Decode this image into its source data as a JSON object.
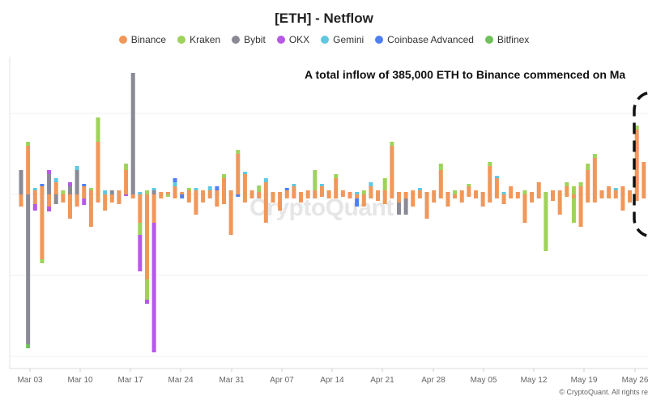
{
  "chart_data": {
    "type": "bar",
    "stacked": true,
    "title": "[ETH] - Netflow",
    "legend_position": "top",
    "grid": true,
    "x_ticks": [
      "Mar 03",
      "Mar 10",
      "Mar 17",
      "Mar 24",
      "Mar 31",
      "Apr 07",
      "Apr 14",
      "Apr 21",
      "Apr 28",
      "May 05",
      "May 12",
      "May 19",
      "May 26"
    ],
    "series_colors": {
      "Binance": "#f0975a",
      "Kraken": "#9ed35a",
      "Bybit": "#8a8a96",
      "OKX": "#b658e8",
      "Gemini": "#5ec8e0",
      "Coinbase Advanced": "#4f7ff0",
      "Bitfinex": "#6fc15a"
    },
    "series": [
      {
        "name": "Binance"
      },
      {
        "name": "Kraken"
      },
      {
        "name": "Bybit"
      },
      {
        "name": "OKX"
      },
      {
        "name": "Gemini"
      },
      {
        "name": "Coinbase Advanced"
      },
      {
        "name": "Bitfinex"
      }
    ],
    "bars": [
      {
        "date": "Mar 01",
        "pos": {
          "Bybit": 30
        },
        "neg": {
          "Binance": 15
        }
      },
      {
        "date": "Mar 02",
        "pos": {
          "Binance": 60,
          "Kraken": 5
        },
        "neg": {
          "Bybit": 185,
          "Bitfinex": 5
        }
      },
      {
        "date": "Mar 03",
        "pos": {
          "Binance": 5,
          "Gemini": 3
        },
        "neg": {
          "Binance": 12,
          "OKX": 8
        }
      },
      {
        "date": "Mar 04",
        "pos": {
          "Binance": 10,
          "Coinbase Advanced": 3
        },
        "neg": {
          "Binance": 80,
          "Kraken": 5
        }
      },
      {
        "date": "Mar 05",
        "pos": {
          "Bybit": 25,
          "OKX": 5
        },
        "neg": {
          "Binance": 15,
          "OKX": 6
        }
      },
      {
        "date": "Mar 06",
        "pos": {
          "Binance": 15,
          "Gemini": 5
        },
        "neg": {
          "Bybit": 12
        }
      },
      {
        "date": "Mar 07",
        "pos": {
          "Kraken": 5
        },
        "neg": {
          "Binance": 10
        }
      },
      {
        "date": "Mar 08",
        "pos": {
          "Bybit": 10,
          "OKX": 5
        },
        "neg": {
          "Binance": 30
        }
      },
      {
        "date": "Mar 09",
        "pos": {
          "Bybit": 30,
          "Gemini": 5
        },
        "neg": {
          "Binance": 15
        }
      },
      {
        "date": "Mar 10",
        "pos": {
          "Binance": 10,
          "Coinbase Advanced": 3
        },
        "neg": {
          "OKX": 8,
          "Binance": 5
        }
      },
      {
        "date": "Mar 11",
        "pos": {
          "Binance": 5,
          "Kraken": 3
        },
        "neg": {
          "Binance": 40
        }
      },
      {
        "date": "Mar 12",
        "pos": {
          "Binance": 65,
          "Kraken": 30
        },
        "neg": {
          "Binance": 10
        }
      },
      {
        "date": "Mar 13",
        "pos": {
          "Gemini": 5
        },
        "neg": {
          "Binance": 20
        }
      },
      {
        "date": "Mar 14",
        "pos": {
          "Bybit": 5
        },
        "neg": {
          "Binance": 10
        }
      },
      {
        "date": "Mar 15",
        "pos": {
          "Binance": 5
        },
        "neg": {
          "Binance": 12
        }
      },
      {
        "date": "Mar 16",
        "pos": {
          "Binance": 30,
          "Kraken": 8
        },
        "neg": {
          "OKX": 2
        }
      },
      {
        "date": "Mar 17",
        "pos": {
          "Bybit": 150
        },
        "neg": {
          "Binance": 5
        }
      },
      {
        "date": "Mar 18",
        "pos": {
          "Gemini": 3
        },
        "neg": {
          "OKX": 45,
          "Kraken": 15,
          "Binance": 35
        }
      },
      {
        "date": "Mar 19",
        "pos": {
          "Kraken": 5
        },
        "neg": {
          "Binance": 105,
          "Kraken": 25,
          "OKX": 5
        }
      },
      {
        "date": "Mar 20",
        "pos": {
          "Bybit": 5,
          "Gemini": 3
        },
        "neg": {
          "OKX": 160,
          "Binance": 35
        }
      },
      {
        "date": "Mar 21",
        "pos": {
          "Binance": 3
        },
        "neg": {
          "Binance": 5
        }
      },
      {
        "date": "Mar 22",
        "pos": {
          "Binance": 3
        },
        "neg": {
          "Kraken": 3
        }
      },
      {
        "date": "Mar 23",
        "pos": {
          "Gemini": 5,
          "Coinbase Advanced": 5,
          "Binance": 10
        },
        "neg": {
          "Binance": 5
        }
      },
      {
        "date": "Mar 24",
        "pos": {
          "Binance": 3
        },
        "neg": {
          "Coinbase Advanced": 5
        }
      },
      {
        "date": "Mar 25",
        "pos": {
          "Binance": 5,
          "Kraken": 3
        },
        "neg": {
          "Binance": 10
        }
      },
      {
        "date": "Mar 26",
        "pos": {
          "Binance": 5,
          "Gemini": 3
        },
        "neg": {
          "Binance": 25
        }
      },
      {
        "date": "Mar 27",
        "pos": {
          "Binance": 5
        },
        "neg": {
          "Binance": 10
        }
      },
      {
        "date": "Mar 28",
        "pos": {
          "Gemini": 5,
          "Binance": 5
        },
        "neg": {
          "Binance": 5
        }
      },
      {
        "date": "Mar 29",
        "pos": {
          "Binance": 5,
          "Coinbase Advanced": 5
        },
        "neg": {
          "Binance": 15
        }
      },
      {
        "date": "Mar 30",
        "pos": {
          "Binance": 20,
          "Kraken": 5
        },
        "neg": {
          "Binance": 12
        }
      },
      {
        "date": "Mar 31",
        "pos": {
          "Binance": 5
        },
        "neg": {
          "Binance": 50
        }
      },
      {
        "date": "Apr 01",
        "pos": {
          "Binance": 50,
          "Kraken": 5
        },
        "neg": {
          "Coinbase Advanced": 3
        }
      },
      {
        "date": "Apr 02",
        "pos": {
          "Binance": 25,
          "Gemini": 3
        },
        "neg": {
          "Binance": 10
        }
      },
      {
        "date": "Apr 03",
        "pos": {
          "Binance": 5
        },
        "neg": {
          "Binance": 5
        }
      },
      {
        "date": "Apr 04",
        "pos": {
          "Kraken": 8,
          "Binance": 3
        },
        "neg": {
          "Binance": 5
        }
      },
      {
        "date": "Apr 05",
        "pos": {
          "Binance": 15,
          "Gemini": 5
        },
        "neg": {
          "Binance": 35
        }
      },
      {
        "date": "Apr 06",
        "pos": {
          "Binance": 3
        },
        "neg": {
          "Binance": 10
        }
      },
      {
        "date": "Apr 07",
        "pos": {
          "Binance": 3
        },
        "neg": {
          "Binance": 20
        }
      },
      {
        "date": "Apr 08",
        "pos": {
          "Binance": 5,
          "Coinbase Advanced": 3
        },
        "neg": {
          "Binance": 5
        }
      },
      {
        "date": "Apr 09",
        "pos": {
          "Binance": 10,
          "Gemini": 3
        },
        "neg": {
          "Binance": 5
        }
      },
      {
        "date": "Apr 10",
        "pos": {
          "Binance": 3
        },
        "neg": {
          "Binance": 10
        }
      },
      {
        "date": "Apr 11",
        "pos": {
          "Binance": 5
        },
        "neg": {
          "Binance": 5
        }
      },
      {
        "date": "Apr 12",
        "pos": {
          "Kraken": 25,
          "Binance": 5
        },
        "neg": {
          "Binance": 5
        }
      },
      {
        "date": "Apr 13",
        "pos": {
          "Binance": 10,
          "Gemini": 3
        },
        "neg": {
          "Binance": 3
        }
      },
      {
        "date": "Apr 14",
        "pos": {
          "Binance": 5
        },
        "neg": {
          "Binance": 5
        }
      },
      {
        "date": "Apr 15",
        "pos": {
          "Binance": 20,
          "Kraken": 5
        },
        "neg": {
          "Binance": 5
        }
      },
      {
        "date": "Apr 16",
        "pos": {
          "Binance": 5
        },
        "neg": {
          "Binance": 3
        }
      },
      {
        "date": "Apr 17",
        "pos": {
          "Binance": 3
        },
        "neg": {
          "Binance": 5
        }
      },
      {
        "date": "Apr 18",
        "pos": {
          "Gemini": 3
        },
        "neg": {
          "Coinbase Advanced": 10,
          "Binance": 5
        }
      },
      {
        "date": "Apr 19",
        "pos": {
          "Kraken": 5
        },
        "neg": {
          "Binance": 15
        }
      },
      {
        "date": "Apr 20",
        "pos": {
          "Binance": 10,
          "Gemini": 5
        },
        "neg": {
          "Binance": 5
        }
      },
      {
        "date": "Apr 21",
        "pos": {
          "Binance": 5
        },
        "neg": {
          "Binance": 8
        }
      },
      {
        "date": "Apr 22",
        "pos": {
          "Kraken": 15,
          "Binance": 5
        },
        "neg": {
          "Binance": 12
        }
      },
      {
        "date": "Apr 23",
        "pos": {
          "Binance": 60,
          "Kraken": 5
        },
        "neg": {
          "Binance": 5
        }
      },
      {
        "date": "Apr 24",
        "pos": {
          "Binance": 3
        },
        "neg": {
          "Bybit": 15,
          "Binance": 10
        }
      },
      {
        "date": "Apr 25",
        "pos": {
          "Binance": 3
        },
        "neg": {
          "Bybit": 20,
          "Binance": 5
        }
      },
      {
        "date": "Apr 26",
        "pos": {
          "Binance": 5
        },
        "neg": {
          "Binance": 15
        }
      },
      {
        "date": "Apr 27",
        "pos": {
          "Binance": 5,
          "Gemini": 3
        },
        "neg": {
          "Binance": 5
        }
      },
      {
        "date": "Apr 28",
        "pos": {
          "Binance": 3
        },
        "neg": {
          "Binance": 30
        }
      },
      {
        "date": "Apr 29",
        "pos": {
          "Binance": 5
        },
        "neg": {
          "Binance": 10
        }
      },
      {
        "date": "Apr 30",
        "pos": {
          "Binance": 30,
          "Kraken": 8
        },
        "neg": {
          "Binance": 5
        }
      },
      {
        "date": "May 01",
        "pos": {
          "Binance": 3
        },
        "neg": {
          "Binance": 15
        }
      },
      {
        "date": "May 02",
        "pos": {
          "Kraken": 5
        },
        "neg": {
          "Binance": 5
        }
      },
      {
        "date": "May 03",
        "pos": {
          "Binance": 5
        },
        "neg": {
          "Binance": 10
        }
      },
      {
        "date": "May 04",
        "pos": {
          "Binance": 10,
          "Kraken": 3
        },
        "neg": {
          "Binance": 3
        }
      },
      {
        "date": "May 05",
        "pos": {
          "Binance": 5
        },
        "neg": {
          "Binance": 5
        }
      },
      {
        "date": "May 06",
        "pos": {
          "Binance": 3
        },
        "neg": {
          "Binance": 15
        }
      },
      {
        "date": "May 07",
        "pos": {
          "Binance": 35,
          "Kraken": 5
        },
        "neg": {
          "Binance": 10
        }
      },
      {
        "date": "May 08",
        "pos": {
          "Binance": 20,
          "Gemini": 3
        },
        "neg": {
          "Binance": 5
        }
      },
      {
        "date": "May 09",
        "pos": {
          "Gemini": 3
        },
        "neg": {
          "Binance": 12
        }
      },
      {
        "date": "May 10",
        "pos": {
          "Binance": 10
        },
        "neg": {
          "Binance": 5
        }
      },
      {
        "date": "May 11",
        "pos": {
          "Binance": 3
        },
        "neg": {
          "Binance": 5
        }
      },
      {
        "date": "May 12",
        "pos": {
          "Kraken": 5
        },
        "neg": {
          "Binance": 35
        }
      },
      {
        "date": "May 13",
        "pos": {
          "Binance": 3
        },
        "neg": {
          "Binance": 10
        }
      },
      {
        "date": "May 14",
        "pos": {
          "Binance": 15
        },
        "neg": {
          "Binance": 5
        }
      },
      {
        "date": "May 15",
        "pos": {
          "Kraken": 3
        },
        "neg": {
          "Kraken": 70
        }
      },
      {
        "date": "May 16",
        "pos": {
          "Binance": 5
        },
        "neg": {
          "Binance": 8
        }
      },
      {
        "date": "May 17",
        "pos": {
          "Binance": 5
        },
        "neg": {
          "Binance": 25
        }
      },
      {
        "date": "May 18",
        "pos": {
          "Binance": 10,
          "Kraken": 5
        },
        "neg": {
          "Binance": 3
        }
      },
      {
        "date": "May 19",
        "pos": {
          "Kraken": 10
        },
        "neg": {
          "Kraken": 30,
          "Binance": 5
        }
      },
      {
        "date": "May 20",
        "pos": {
          "Binance": 10,
          "Kraken": 5
        },
        "neg": {
          "Binance": 40
        }
      },
      {
        "date": "May 21",
        "pos": {
          "Binance": 30,
          "Kraken": 8
        },
        "neg": {
          "Binance": 10
        }
      },
      {
        "date": "May 22",
        "pos": {
          "Binance": 45,
          "Kraken": 5
        },
        "neg": {
          "Binance": 10
        }
      },
      {
        "date": "May 23",
        "pos": {
          "Binance": 5
        },
        "neg": {
          "Binance": 5
        }
      },
      {
        "date": "May 24",
        "pos": {
          "Binance": 10
        },
        "neg": {
          "Binance": 5
        }
      },
      {
        "date": "May 25",
        "pos": {
          "Binance": 5,
          "Gemini": 3
        },
        "neg": {
          "Binance": 5
        }
      },
      {
        "date": "May 26",
        "pos": {
          "Binance": 10
        },
        "neg": {
          "Binance": 20
        }
      },
      {
        "date": "May 27",
        "pos": {
          "Binance": 5
        },
        "neg": {
          "Binance": 10
        }
      },
      {
        "date": "May 28",
        "pos": {
          "Binance": 80,
          "Kraken": 5
        },
        "neg": {
          "Binance": 8
        }
      },
      {
        "date": "May 29",
        "pos": {
          "Binance": 40
        },
        "neg": {
          "Binance": 5
        }
      }
    ],
    "annotations": [
      "A total inflow of 385,000 ETH to Binance commenced on Ma"
    ],
    "watermark": "CryptoQuant",
    "credit": "© CryptoQuant. All rights re"
  }
}
